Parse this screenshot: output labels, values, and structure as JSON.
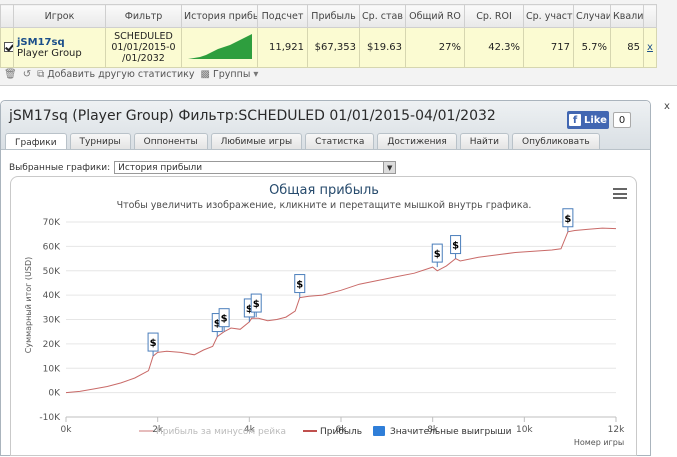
{
  "stats": {
    "headers": [
      "Игрок",
      "Фильтр",
      "История прибыль",
      "Подсчет",
      "Прибыль",
      "Ср. став",
      "Общий RO",
      "Ср. ROI",
      "Ср. участ",
      "Случаи",
      "Квалиф"
    ],
    "row": {
      "player_name": "jSM17sq",
      "player_group": "Player Group",
      "filter_line1": "SCHEDULED",
      "filter_line2": "01/01/2015-0",
      "filter_line3": "/01/2032",
      "count": "11,921",
      "profit": "$67,353",
      "avg_stake": "$19.63",
      "total_roi": "27%",
      "avg_roi": "42.3%",
      "avg_entrants": "717",
      "cases": "5.7%",
      "qualified": "85",
      "remove": "x"
    },
    "toolbar": {
      "add_stat": "Добавить другую статистику",
      "groups": "Группы"
    }
  },
  "panel": {
    "title": "jSM17sq (Player Group) Фильтр:SCHEDULED 01/01/2015-04/01/2032",
    "close": "x",
    "fb_like": "Like",
    "fb_count": "0",
    "tabs": [
      "Графики",
      "Турниры",
      "Оппоненты",
      "Любимые игры",
      "Статистка",
      "Достижения",
      "Найти",
      "Опубликовать"
    ],
    "selector_label": "Выбранные графики:",
    "selector_value": "История прибыли"
  },
  "chart_data": {
    "type": "line",
    "title": "Общая прибыль",
    "subtitle": "Чтобы увеличить изображение, кликните и перетащите мышкой внутрь графика.",
    "xlabel": "Номер игры",
    "ylabel": "Суммарный итог (USD)",
    "xlim": [
      0,
      12000
    ],
    "ylim": [
      -10000,
      70000
    ],
    "x_ticks": [
      0,
      2000,
      4000,
      6000,
      8000,
      10000,
      12000
    ],
    "x_tick_labels": [
      "0k",
      "2k",
      "4k",
      "6k",
      "8k",
      "10k",
      "12k"
    ],
    "y_ticks": [
      -10000,
      0,
      10000,
      20000,
      30000,
      40000,
      50000,
      60000,
      70000
    ],
    "y_tick_labels": [
      "-10K",
      "0K",
      "10K",
      "20K",
      "30K",
      "40K",
      "50K",
      "60K",
      "70K"
    ],
    "series": [
      {
        "name": "Прибыль",
        "color": "#c0504d",
        "x": [
          0,
          300,
          600,
          900,
          1200,
          1500,
          1800,
          1900,
          2000,
          2200,
          2500,
          2800,
          3000,
          3200,
          3300,
          3450,
          3600,
          3800,
          4000,
          4050,
          4200,
          4400,
          4600,
          4800,
          5000,
          5100,
          5300,
          5600,
          6000,
          6400,
          6800,
          7200,
          7600,
          8000,
          8100,
          8300,
          8500,
          8600,
          9000,
          9400,
          9800,
          10200,
          10600,
          10800,
          10950,
          11100,
          11400,
          11700,
          12000
        ],
        "y": [
          0,
          500,
          1500,
          2500,
          4000,
          6000,
          9000,
          15000,
          16500,
          17000,
          16500,
          15500,
          17500,
          19000,
          23000,
          25000,
          26500,
          26000,
          29000,
          30500,
          30500,
          29500,
          30000,
          31000,
          33500,
          39000,
          39500,
          40000,
          42000,
          44500,
          46000,
          47500,
          49000,
          51500,
          50000,
          52000,
          55000,
          54000,
          55500,
          56500,
          57500,
          58000,
          58500,
          59000,
          66000,
          66500,
          67000,
          67500,
          67300
        ]
      }
    ],
    "legend": [
      "Прибыль за минусом рейка",
      "Прибыль",
      "Значительные выигрыши"
    ],
    "big_wins": [
      {
        "x": 1900,
        "y": 15000,
        "label": "$"
      },
      {
        "x": 3300,
        "y": 23000,
        "label": "$"
      },
      {
        "x": 3450,
        "y": 25000,
        "label": "$"
      },
      {
        "x": 4000,
        "y": 29000,
        "label": "$"
      },
      {
        "x": 4150,
        "y": 31000,
        "label": "$"
      },
      {
        "x": 5100,
        "y": 39000,
        "label": "$"
      },
      {
        "x": 8100,
        "y": 51500,
        "label": "$"
      },
      {
        "x": 8500,
        "y": 55000,
        "label": "$"
      },
      {
        "x": 10950,
        "y": 66000,
        "label": "$"
      }
    ]
  }
}
